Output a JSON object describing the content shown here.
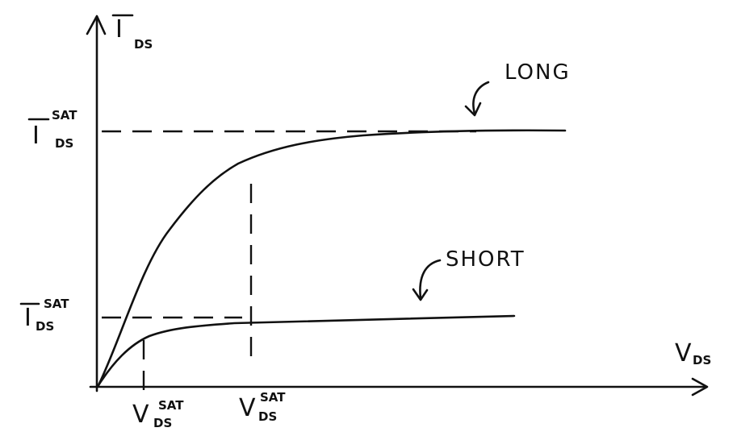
{
  "axes": {
    "y_label_main": "I",
    "y_label_sub": "DS",
    "x_label": "V",
    "x_label_sub": "DS"
  },
  "ticks": {
    "ids_sat_long": {
      "main": "I",
      "sub": "DS",
      "sup": "SAT"
    },
    "ids_sat_short": {
      "main": "I",
      "sub": "DS",
      "sup": "SAT"
    },
    "vds_sat_short": {
      "main": "V",
      "sub": "DS",
      "sup": "SAT"
    },
    "vds_sat_long": {
      "main": "V",
      "sub": "DS",
      "sup": "SAT"
    }
  },
  "curves": {
    "long_label": "LONG",
    "short_label": "SHORT"
  }
}
